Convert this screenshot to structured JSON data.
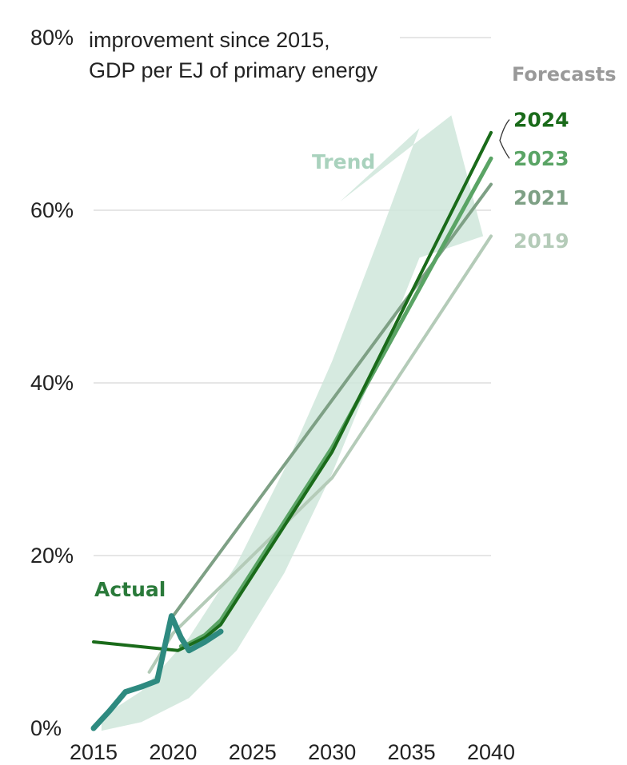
{
  "chart_data": {
    "type": "line",
    "title": "",
    "subtitle_lines": [
      "improvement since 2015,",
      "GDP per EJ of primary energy"
    ],
    "xlabel": "",
    "ylabel": "",
    "xlim": [
      2015,
      2040
    ],
    "ylim": [
      0,
      80
    ],
    "x_ticks": [
      2015,
      2020,
      2025,
      2030,
      2035,
      2040
    ],
    "x_tick_labels": [
      "2015",
      "2020",
      "2025",
      "2030",
      "2035",
      "2040"
    ],
    "y_ticks": [
      0,
      20,
      40,
      60,
      80
    ],
    "y_tick_labels": [
      "0%",
      "20%",
      "40%",
      "60%",
      "80%"
    ],
    "grid": true,
    "forecasts_heading": "Forecasts",
    "actual_label": "Actual",
    "trend_label": "Trend",
    "colors": {
      "forecast_2024": "#1a6b1a",
      "forecast_2023": "#5aa465",
      "forecast_2021": "#7ea085",
      "forecast_2019": "#b4cbb8",
      "actual": "#2e8a80",
      "actual_label": "#2a7a3a",
      "trend": "#cfe6da",
      "trend_label": "#a9d2bd",
      "heading": "#999999",
      "tick": "#222222",
      "grid": "#dddddd"
    },
    "series": [
      {
        "name": "2024",
        "x": [
          2015,
          2020.3,
          2022,
          2023,
          2030,
          2040
        ],
        "y": [
          10,
          9,
          10.5,
          12,
          32,
          69
        ]
      },
      {
        "name": "2023",
        "x": [
          2020.5,
          2021,
          2022,
          2023,
          2030,
          2040
        ],
        "y": [
          9.5,
          9.8,
          10.8,
          12.5,
          32.5,
          66
        ]
      },
      {
        "name": "2021",
        "x": [
          2020,
          2040
        ],
        "y": [
          13,
          63
        ]
      },
      {
        "name": "2019",
        "x": [
          2018.5,
          2020,
          2030,
          2040
        ],
        "y": [
          6.5,
          11,
          29,
          57
        ]
      },
      {
        "name": "Actual",
        "x": [
          2015,
          2016,
          2017,
          2018,
          2019,
          2019.9,
          2020.5,
          2021,
          2022,
          2023
        ],
        "y": [
          0,
          2,
          4.2,
          4.8,
          5.5,
          13,
          10.5,
          9,
          10,
          11.2
        ]
      }
    ],
    "trend": {
      "center_x": [
        2015.5,
        2018,
        2021,
        2024,
        2027,
        2030,
        2033,
        2035.5
      ],
      "center_y": [
        0.5,
        2.5,
        7,
        14,
        24,
        36,
        50,
        62
      ],
      "half_width_y": [
        0.8,
        1.8,
        3.5,
        5,
        6,
        6.5,
        7,
        7.5
      ],
      "tip": [
        2037.5,
        71
      ],
      "head_left": [
        2030.5,
        61
      ],
      "head_right": [
        2039.5,
        57
      ]
    },
    "forecast_labels": [
      {
        "text": "2024",
        "y": 70.5
      },
      {
        "text": "2023",
        "y": 66
      },
      {
        "text": "2021",
        "y": 61.5
      },
      {
        "text": "2019",
        "y": 56.5
      }
    ]
  }
}
